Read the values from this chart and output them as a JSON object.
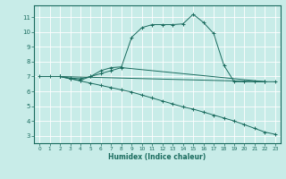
{
  "xlabel": "Humidex (Indice chaleur)",
  "bg_color": "#c8ece8",
  "line_color": "#1a6b5e",
  "grid_color": "#ffffff",
  "xlim": [
    -0.5,
    23.5
  ],
  "ylim": [
    2.5,
    11.8
  ],
  "yticks": [
    3,
    4,
    5,
    6,
    7,
    8,
    9,
    10,
    11
  ],
  "xticks": [
    0,
    1,
    2,
    3,
    4,
    5,
    6,
    7,
    8,
    9,
    10,
    11,
    12,
    13,
    14,
    15,
    16,
    17,
    18,
    19,
    20,
    21,
    22,
    23
  ],
  "line1_x": [
    0,
    1,
    2,
    3,
    4,
    5,
    6,
    7,
    8,
    9,
    10,
    11,
    12,
    13,
    14,
    15,
    16,
    17,
    18,
    19,
    20,
    21,
    22
  ],
  "line1_y": [
    7.0,
    7.0,
    7.0,
    6.9,
    6.85,
    7.0,
    7.4,
    7.6,
    7.65,
    9.65,
    10.3,
    10.5,
    10.5,
    10.5,
    10.55,
    11.2,
    10.65,
    9.9,
    7.75,
    6.65,
    6.65,
    6.65,
    6.65
  ],
  "line2_x": [
    2,
    3,
    4,
    5,
    6,
    7,
    8,
    22
  ],
  "line2_y": [
    7.0,
    6.85,
    6.75,
    7.0,
    7.2,
    7.4,
    7.6,
    6.65
  ],
  "line3_x": [
    2,
    22,
    23
  ],
  "line3_y": [
    7.0,
    6.65,
    6.65
  ],
  "line4_x": [
    2,
    3,
    4,
    5,
    6,
    7,
    8,
    9,
    10,
    11,
    12,
    13,
    14,
    15,
    16,
    17,
    18,
    19,
    20,
    21,
    22,
    23
  ],
  "line4_y": [
    7.0,
    6.85,
    6.7,
    6.55,
    6.4,
    6.25,
    6.1,
    5.95,
    5.75,
    5.55,
    5.35,
    5.15,
    4.95,
    4.8,
    4.6,
    4.4,
    4.2,
    4.0,
    3.75,
    3.5,
    3.25,
    3.1
  ]
}
